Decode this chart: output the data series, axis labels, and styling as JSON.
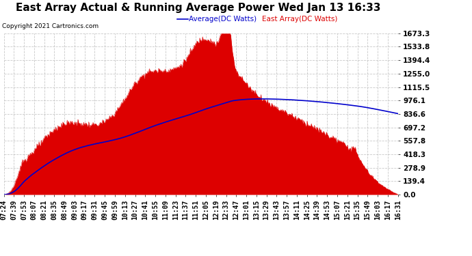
{
  "title": "East Array Actual & Running Average Power Wed Jan 13 16:33",
  "copyright": "Copyright 2021 Cartronics.com",
  "legend_avg": "Average(DC Watts)",
  "legend_east": "East Array(DC Watts)",
  "ylabel_values": [
    0.0,
    139.4,
    278.9,
    418.3,
    557.8,
    697.2,
    836.6,
    976.1,
    1115.5,
    1255.0,
    1394.4,
    1533.8,
    1673.3
  ],
  "ymax": 1673.3,
  "ymin": 0.0,
  "background_color": "#ffffff",
  "plot_bg_color": "#ffffff",
  "grid_color": "#bbbbbb",
  "fill_color": "#dd0000",
  "line_color": "#0000cc",
  "title_fontsize": 11,
  "tick_fontsize": 7,
  "x_labels": [
    "07:24",
    "07:39",
    "07:53",
    "08:07",
    "08:21",
    "08:35",
    "08:49",
    "09:03",
    "09:17",
    "09:31",
    "09:45",
    "09:59",
    "10:13",
    "10:27",
    "10:41",
    "10:55",
    "11:09",
    "11:23",
    "11:37",
    "11:51",
    "12:05",
    "12:19",
    "12:33",
    "12:47",
    "13:01",
    "13:15",
    "13:29",
    "13:43",
    "13:57",
    "14:11",
    "14:25",
    "14:39",
    "14:53",
    "15:07",
    "15:21",
    "15:35",
    "15:49",
    "16:03",
    "16:17",
    "16:31"
  ]
}
